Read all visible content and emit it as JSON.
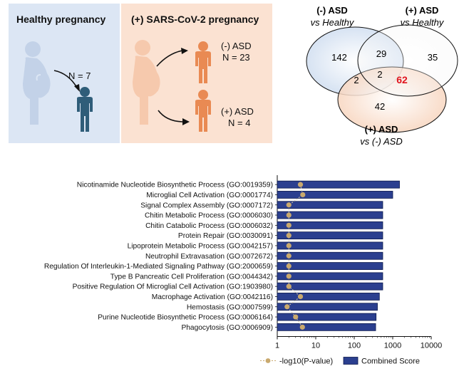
{
  "top": {
    "healthy_title": "Healthy pregnancy",
    "healthy_n": "N = 7",
    "covid_title": "(+) SARS-CoV-2 pregnancy",
    "neg_asd_label": "(-) ASD",
    "neg_asd_n": "N = 23",
    "pos_asd_label": "(+) ASD",
    "pos_asd_n": "N = 4"
  },
  "venn": {
    "set_a_title": "(-) ASD",
    "set_a_subtitle": "vs Healthy",
    "set_b_title": "(+) ASD",
    "set_b_subtitle": "vs Healthy",
    "set_c_title": "(+) ASD",
    "set_c_subtitle": "vs (-) ASD",
    "count_a_only": "142",
    "count_b_only": "35",
    "count_ab": "29",
    "count_ac": "2",
    "count_abc": "2",
    "count_bc": "62",
    "count_c_only": "42",
    "colors": {
      "a": "#c9d9ee",
      "b": "#ffffff",
      "c": "#f6cdb2",
      "highlight": "#e0141e"
    }
  },
  "chart_data": {
    "type": "bar",
    "xscale": "log",
    "xlim": [
      1,
      10000
    ],
    "xticks": [
      "1",
      "10",
      "100",
      "1000",
      "10000"
    ],
    "categories": [
      "Nicotinamide Nucleotide Biosynthetic Process (GO:0019359)",
      "Microglial Cell Activation (GO:0001774)",
      "Signal Complex Assembly (GO:0007172)",
      "Chitin Metabolic Process (GO:0006030)",
      "Chitin Catabolic Process (GO:0006032)",
      "Protein Repair (GO:0030091)",
      "Lipoprotein Metabolic Process (GO:0042157)",
      "Neutrophil Extravasation (GO:0072672)",
      "Regulation Of Interleukin-1-Mediated Signaling Pathway (GO:2000659)",
      "Type B Pancreatic Cell Proliferation (GO:0044342)",
      "Positive Regulation Of Microglial Cell Activation (GO:1903980)",
      "Macrophage Activation (GO:0042116)",
      "Hemostasis (GO:0007599)",
      "Purine Nucleotide Biosynthetic Process (GO:0006164)",
      "Phagocytosis (GO:0006909)"
    ],
    "series": [
      {
        "name": "Combined Score",
        "type": "bar",
        "color": "#2b3f8f",
        "values": [
          1500,
          1000,
          550,
          550,
          550,
          550,
          550,
          550,
          550,
          550,
          550,
          450,
          400,
          370,
          360
        ]
      },
      {
        "name": "-log10(P-value)",
        "type": "scatter-line",
        "color": "#c9a96e",
        "values": [
          4.0,
          4.6,
          2.0,
          2.0,
          2.0,
          2.0,
          2.0,
          2.0,
          2.0,
          2.0,
          2.0,
          4.0,
          1.8,
          3.0,
          4.5
        ]
      }
    ],
    "legend": [
      "-log10(P-value)",
      "Combined Score"
    ],
    "legend_position": "bottom"
  }
}
